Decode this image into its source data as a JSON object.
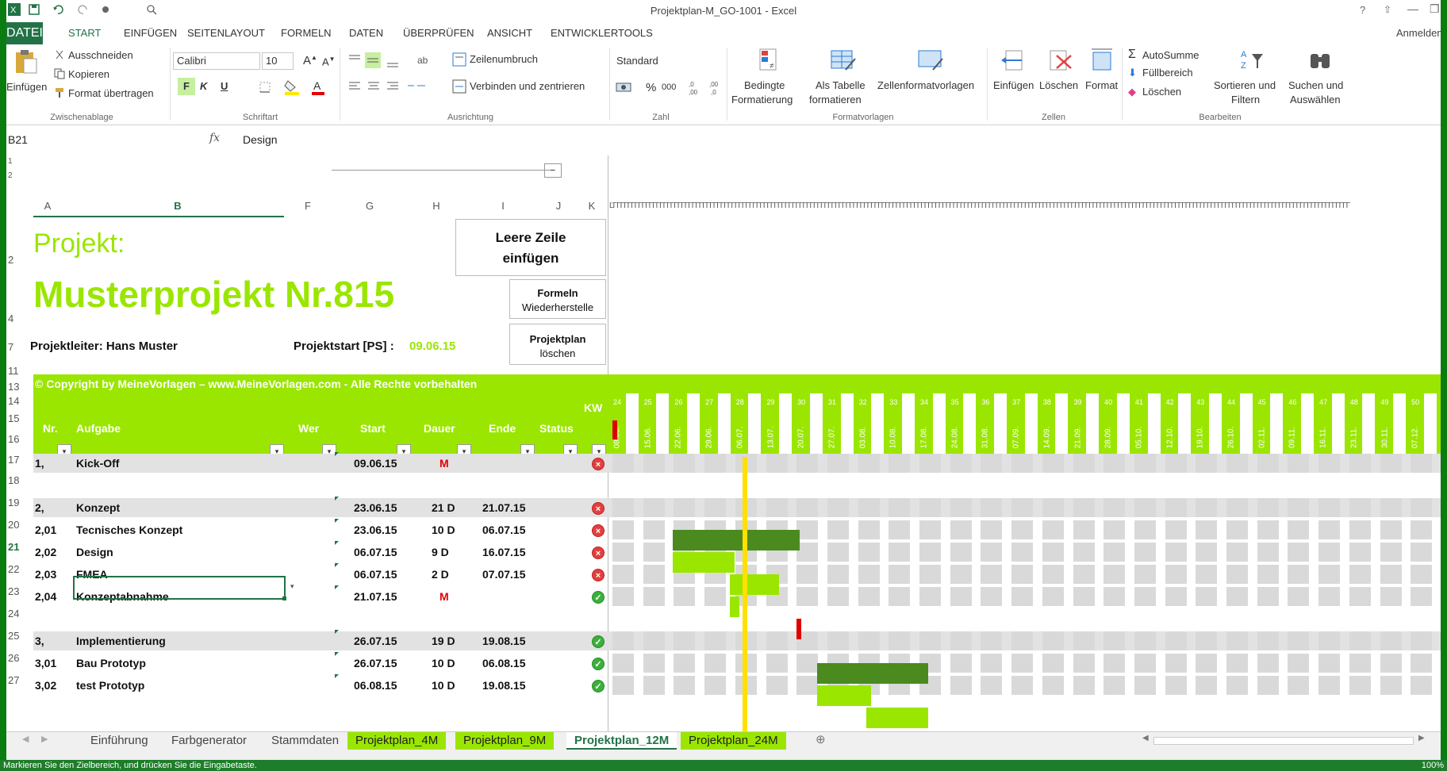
{
  "window": {
    "title": "Projektplan-M_GO-1001 - Excel",
    "user": "Anmelden"
  },
  "tabs": [
    "DATEI",
    "START",
    "EINFÜGEN",
    "SEITENLAYOUT",
    "FORMELN",
    "DATEN",
    "ÜBERPRÜFEN",
    "ANSICHT",
    "ENTWICKLERTOOLS"
  ],
  "ribbon": {
    "clipboard": {
      "paste": "Einfügen",
      "cut": "Ausschneiden",
      "copy": "Kopieren",
      "format": "Format übertragen",
      "group": "Zwischenablage"
    },
    "font": {
      "name": "Calibri",
      "size": "10",
      "bold": "F",
      "italic": "K",
      "underline": "U",
      "group": "Schriftart"
    },
    "alignment": {
      "wrap": "Zeilenumbruch",
      "merge": "Verbinden und zentrieren",
      "group": "Ausrichtung"
    },
    "number": {
      "format": "Standard",
      "percent": "%",
      "thousands": "000",
      "group": "Zahl"
    },
    "styles": {
      "cond1": "Bedingte",
      "cond2": "Formatierung",
      "table1": "Als Tabelle",
      "table2": "formatieren",
      "cellstyles": "Zellenformatvorlagen",
      "group": "Formatvorlagen"
    },
    "cells": {
      "insert": "Einfügen",
      "delete": "Löschen",
      "format": "Format",
      "group": "Zellen"
    },
    "editing": {
      "autosum": "AutoSumme",
      "fill": "Füllbereich",
      "clear": "Löschen",
      "sort1": "Sortieren und",
      "sort2": "Filtern",
      "find1": "Suchen und",
      "find2": "Auswählen",
      "group": "Bearbeiten"
    }
  },
  "formula": {
    "namebox": "B21",
    "fx": "fx",
    "value": "Design"
  },
  "columns": [
    "A",
    "B",
    "F",
    "G",
    "H",
    "I",
    "J",
    "K"
  ],
  "project": {
    "label": "Projekt:",
    "name": "Musterprojekt Nr.815",
    "leader": "Projektleiter: Hans Muster",
    "start_label": "Projektstart [PS] :",
    "start_value": "09.06.15"
  },
  "buttons": {
    "empty_row1": "Leere Zeile",
    "empty_row2": "einfügen",
    "formulas1": "Formeln",
    "formulas2": "Wiederherstelle",
    "plan1": "Projektplan",
    "plan2": "löschen"
  },
  "copyright": "© Copyright by MeineVorlagen – www.MeineVorlagen.com - Alle Rechte vorbehalten",
  "headers": {
    "nr": "Nr.",
    "task": "Aufgabe",
    "who": "Wer",
    "start": "Start",
    "duration": "Dauer",
    "end": "Ende",
    "status": "Status",
    "kw": "KW"
  },
  "weeks": [
    {
      "kw": "24",
      "date": "08.06."
    },
    {
      "kw": "25",
      "date": "15.06."
    },
    {
      "kw": "26",
      "date": "22.06."
    },
    {
      "kw": "27",
      "date": "29.06."
    },
    {
      "kw": "28",
      "date": "06.07."
    },
    {
      "kw": "29",
      "date": "13.07."
    },
    {
      "kw": "30",
      "date": "20.07."
    },
    {
      "kw": "31",
      "date": "27.07."
    },
    {
      "kw": "32",
      "date": "03.08."
    },
    {
      "kw": "33",
      "date": "10.08."
    },
    {
      "kw": "34",
      "date": "17.08."
    },
    {
      "kw": "35",
      "date": "24.08."
    },
    {
      "kw": "36",
      "date": "31.08."
    },
    {
      "kw": "37",
      "date": "07.09."
    },
    {
      "kw": "38",
      "date": "14.09."
    },
    {
      "kw": "39",
      "date": "21.09."
    },
    {
      "kw": "40",
      "date": "28.09."
    },
    {
      "kw": "41",
      "date": "05.10."
    },
    {
      "kw": "42",
      "date": "12.10."
    },
    {
      "kw": "43",
      "date": "19.10."
    },
    {
      "kw": "44",
      "date": "26.10."
    },
    {
      "kw": "45",
      "date": "02.11."
    },
    {
      "kw": "46",
      "date": "09.11."
    },
    {
      "kw": "47",
      "date": "16.11."
    },
    {
      "kw": "48",
      "date": "23.11."
    },
    {
      "kw": "49",
      "date": "30.11."
    },
    {
      "kw": "50",
      "date": "07.12."
    }
  ],
  "tasks": [
    {
      "row": "17",
      "nr": "1,",
      "task": "Kick-Off",
      "start": "09.06.15",
      "dur": "M",
      "end": "",
      "status": "x"
    },
    {
      "row": "19",
      "nr": "2,",
      "task": "Konzept",
      "start": "23.06.15",
      "dur": "21 D",
      "end": "21.07.15",
      "status": "x"
    },
    {
      "row": "20",
      "nr": "2,01",
      "task": "Tecnisches Konzept",
      "start": "23.06.15",
      "dur": "10 D",
      "end": "06.07.15",
      "status": "x"
    },
    {
      "row": "21",
      "nr": "2,02",
      "task": "Design",
      "start": "06.07.15",
      "dur": "9 D",
      "end": "16.07.15",
      "status": "x"
    },
    {
      "row": "22",
      "nr": "2,03",
      "task": "FMEA",
      "start": "06.07.15",
      "dur": "2 D",
      "end": "07.07.15",
      "status": "x"
    },
    {
      "row": "23",
      "nr": "2,04",
      "task": "Konzeptabnahme",
      "start": "21.07.15",
      "dur": "M",
      "end": "",
      "status": "ok"
    },
    {
      "row": "25",
      "nr": "3,",
      "task": "Implementierung",
      "start": "26.07.15",
      "dur": "19 D",
      "end": "19.08.15",
      "status": "ok"
    },
    {
      "row": "26",
      "nr": "3,01",
      "task": "Bau Prototyp",
      "start": "26.07.15",
      "dur": "10 D",
      "end": "06.08.15",
      "status": "ok"
    },
    {
      "row": "27",
      "nr": "3,02",
      "task": "test Prototyp",
      "start": "06.08.15",
      "dur": "10 D",
      "end": "19.08.15",
      "status": "ok"
    }
  ],
  "sheets": [
    "Einführung",
    "Farbgenerator",
    "Stammdaten",
    "Projektplan_4M",
    "Projektplan_9M",
    "Projektplan_12M",
    "Projektplan_24M"
  ],
  "statusbar": "Markieren Sie den Zielbereich, und drücken Sie die Eingabetaste.",
  "zoom": "100%",
  "colors": {
    "accent": "#9ae600",
    "dark": "#4a8a1e",
    "excel": "#217346"
  }
}
